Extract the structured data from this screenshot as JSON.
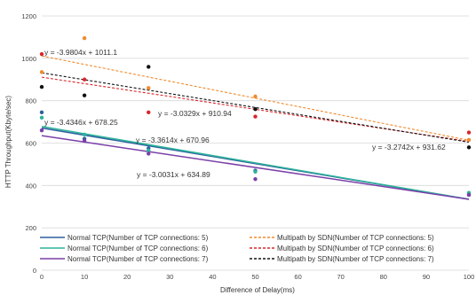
{
  "chart_data": {
    "type": "scatter",
    "title": "",
    "xlabel": "Difference of Delay(ms)",
    "ylabel": "HTTP Throughput(Kbyte/sec)",
    "xlim": [
      0,
      100
    ],
    "ylim": [
      0,
      1200
    ],
    "xticks": [
      0,
      10,
      20,
      30,
      40,
      50,
      60,
      70,
      80,
      90,
      100
    ],
    "yticks": [
      0,
      200,
      400,
      600,
      800,
      1000,
      1200
    ],
    "grid": "horizontal",
    "legend_position": "bottom",
    "series": [
      {
        "name": "Normal TCP(Number of TCP connections: 5)",
        "color": "#2e5f9e",
        "line_style": "solid",
        "x": [
          0,
          10,
          25,
          50,
          100
        ],
        "y": [
          745,
          620,
          575,
          470,
          360
        ],
        "trend": {
          "slope": -3.3614,
          "intercept": 670.96,
          "label": "y = -3.3614x + 670.96"
        }
      },
      {
        "name": "Normal TCP(Number of TCP connections: 6)",
        "color": "#2bb39a",
        "line_style": "solid",
        "x": [
          0,
          10,
          25,
          50,
          100
        ],
        "y": [
          720,
          640,
          565,
          465,
          365
        ],
        "trend": {
          "slope": -3.4346,
          "intercept": 678.25,
          "label": "y = -3.4346x + 678.25"
        }
      },
      {
        "name": "Normal TCP(Number of TCP connections: 7)",
        "color": "#7b3fa8",
        "line_style": "solid",
        "x": [
          0,
          10,
          25,
          50,
          100
        ],
        "y": [
          660,
          610,
          550,
          430,
          355
        ],
        "trend": {
          "slope": -3.0031,
          "intercept": 634.89,
          "label": "y = -3.0031x + 634.89"
        }
      },
      {
        "name": "Multipath by SDN(Number of TCP connections: 5)",
        "color": "#f08a2c",
        "line_style": "dashed",
        "x": [
          0,
          10,
          25,
          50,
          100
        ],
        "y": [
          935,
          1095,
          860,
          820,
          615
        ],
        "trend": {
          "slope": -3.9804,
          "intercept": 1011.1,
          "label": "y = -3.9804x + 1011.1"
        }
      },
      {
        "name": "Multipath by SDN(Number of TCP connections: 6)",
        "color": "#d9262b",
        "line_style": "dashed",
        "x": [
          0,
          10,
          25,
          50,
          100
        ],
        "y": [
          1020,
          900,
          745,
          725,
          650
        ],
        "trend": {
          "slope": -3.0329,
          "intercept": 910.94,
          "label": "y = -3.0329x + 910.94"
        }
      },
      {
        "name": "Multipath by SDN(Number of TCP connections: 7)",
        "color": "#111111",
        "line_style": "dashed",
        "x": [
          0,
          10,
          25,
          50,
          100
        ],
        "y": [
          865,
          825,
          960,
          760,
          580
        ],
        "trend": {
          "slope": -3.2742,
          "intercept": 931.62,
          "label": "y = -3.2742x + 931.62"
        }
      }
    ]
  }
}
